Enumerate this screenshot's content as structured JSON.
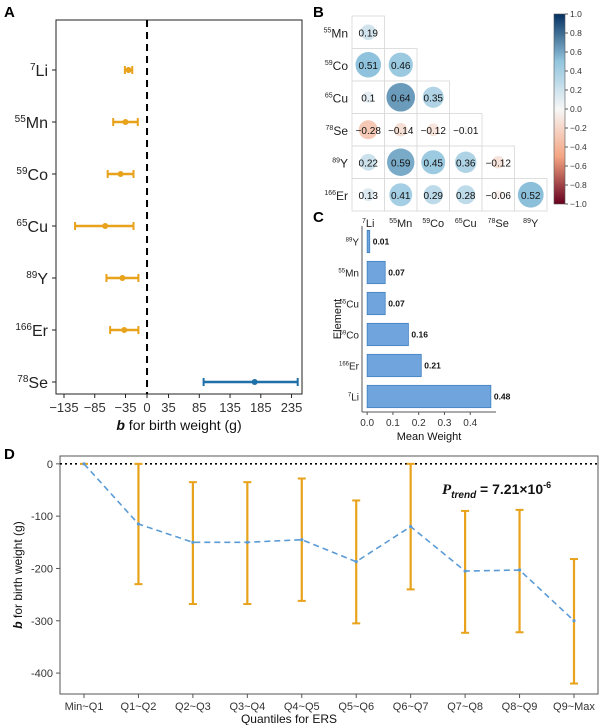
{
  "colors": {
    "orange": "#E8A21B",
    "blue_ci": "#1F6FA8",
    "bar": "#6FA5DC",
    "bar_edge": "#3F7FC0",
    "dash_line": "#5B9BD5"
  },
  "chart_data": [
    {
      "panel": "A",
      "type": "forest",
      "xlabel_b": "b",
      "xlabel_rest": " for birth weight (g)",
      "xticks": [
        -135,
        -85,
        -35,
        0,
        35,
        85,
        135,
        185,
        235
      ],
      "xlim": [
        -148,
        252
      ],
      "rows": [
        {
          "mass": "7",
          "symbol": "Li",
          "est": -30,
          "lo": -36,
          "hi": -24,
          "color": "orange"
        },
        {
          "mass": "55",
          "symbol": "Mn",
          "est": -35,
          "lo": -55,
          "hi": -15,
          "color": "orange"
        },
        {
          "mass": "59",
          "symbol": "Co",
          "est": -43,
          "lo": -64,
          "hi": -22,
          "color": "orange"
        },
        {
          "mass": "65",
          "symbol": "Cu",
          "est": -68,
          "lo": -117,
          "hi": -22,
          "color": "orange"
        },
        {
          "mass": "89",
          "symbol": "Y",
          "est": -40,
          "lo": -66,
          "hi": -14,
          "color": "orange"
        },
        {
          "mass": "166",
          "symbol": "Er",
          "est": -37,
          "lo": -60,
          "hi": -14,
          "color": "orange"
        },
        {
          "mass": "78",
          "symbol": "Se",
          "est": 175,
          "lo": 92,
          "hi": 245,
          "color": "blue_ci"
        }
      ]
    },
    {
      "panel": "B",
      "type": "heatmap",
      "elements": [
        {
          "mass": "7",
          "symbol": "Li"
        },
        {
          "mass": "55",
          "symbol": "Mn"
        },
        {
          "mass": "59",
          "symbol": "Co"
        },
        {
          "mass": "65",
          "symbol": "Cu"
        },
        {
          "mass": "78",
          "symbol": "Se"
        },
        {
          "mass": "89",
          "symbol": "Y"
        },
        {
          "mass": "166",
          "symbol": "Er"
        }
      ],
      "cells": [
        {
          "row": 0,
          "col": 0,
          "value": 0.19,
          "label": "0.19"
        },
        {
          "row": 1,
          "col": 0,
          "value": 0.51,
          "label": "0.51"
        },
        {
          "row": 1,
          "col": 1,
          "value": 0.46,
          "label": "0.46"
        },
        {
          "row": 2,
          "col": 0,
          "value": 0.1,
          "label": "0.1"
        },
        {
          "row": 2,
          "col": 1,
          "value": 0.64,
          "label": "0.64"
        },
        {
          "row": 2,
          "col": 2,
          "value": 0.35,
          "label": "0.35"
        },
        {
          "row": 3,
          "col": 0,
          "value": -0.28,
          "label": "−0.28"
        },
        {
          "row": 3,
          "col": 1,
          "value": -0.14,
          "label": "−0.14"
        },
        {
          "row": 3,
          "col": 2,
          "value": -0.12,
          "label": "−0.12"
        },
        {
          "row": 3,
          "col": 3,
          "value": -0.01,
          "label": "−0.01"
        },
        {
          "row": 4,
          "col": 0,
          "value": 0.22,
          "label": "0.22"
        },
        {
          "row": 4,
          "col": 1,
          "value": 0.59,
          "label": "0.59"
        },
        {
          "row": 4,
          "col": 2,
          "value": 0.45,
          "label": "0.45"
        },
        {
          "row": 4,
          "col": 3,
          "value": 0.36,
          "label": "0.36"
        },
        {
          "row": 4,
          "col": 4,
          "value": -0.12,
          "label": "−0.12"
        },
        {
          "row": 5,
          "col": 0,
          "value": 0.13,
          "label": "0.13"
        },
        {
          "row": 5,
          "col": 1,
          "value": 0.41,
          "label": "0.41"
        },
        {
          "row": 5,
          "col": 2,
          "value": 0.29,
          "label": "0.29"
        },
        {
          "row": 5,
          "col": 3,
          "value": 0.28,
          "label": "0.28"
        },
        {
          "row": 5,
          "col": 4,
          "value": -0.06,
          "label": "−0.06"
        },
        {
          "row": 5,
          "col": 5,
          "value": 0.52,
          "label": "0.52"
        }
      ],
      "colorbar": {
        "range": [
          -1.0,
          1.0
        ],
        "ticks": [
          "1.0",
          "0.8",
          "0.6",
          "0.4",
          "0.2",
          "0.0",
          "−0.2",
          "−0.4",
          "−0.6",
          "−0.8",
          "−1.0"
        ]
      }
    },
    {
      "panel": "C",
      "type": "bar",
      "orientation": "horizontal",
      "xlabel": "Mean Weight",
      "ylabel": "Element",
      "xlim": [
        -0.02,
        0.5
      ],
      "xticks": [
        0.0,
        0.1,
        0.2,
        0.3,
        0.4
      ],
      "xtick_labels": [
        "0.0",
        "0.1",
        "0.2",
        "0.3",
        "0.4"
      ],
      "bars": [
        {
          "mass": "89",
          "symbol": "Y",
          "value": 0.01,
          "label": "0.01"
        },
        {
          "mass": "55",
          "symbol": "Mn",
          "value": 0.07,
          "label": "0.07"
        },
        {
          "mass": "65",
          "symbol": "Cu",
          "value": 0.07,
          "label": "0.07"
        },
        {
          "mass": "59",
          "symbol": "Co",
          "value": 0.16,
          "label": "0.16"
        },
        {
          "mass": "166",
          "symbol": "Er",
          "value": 0.21,
          "label": "0.21"
        },
        {
          "mass": "7",
          "symbol": "Li",
          "value": 0.48,
          "label": "0.48"
        }
      ]
    },
    {
      "panel": "D",
      "type": "line",
      "xlabel": "Quantiles for ERS",
      "ylabel_b": "b",
      "ylabel_rest": " for birth weight (g)",
      "ylim": [
        -440,
        15
      ],
      "yticks": [
        0,
        -100,
        -200,
        -300,
        -400
      ],
      "ytick_labels": [
        "0",
        "-100",
        "-200",
        "-300",
        "-400"
      ],
      "annotation_p": "P",
      "annotation_sub": "trend",
      "annotation_eq": " = 7.21×10",
      "annotation_exp": "-6",
      "categories": [
        "Min~Q1",
        "Q1~Q2",
        "Q2~Q3",
        "Q3~Q4",
        "Q4~Q5",
        "Q5~Q6",
        "Q6~Q7",
        "Q7~Q8",
        "Q8~Q9",
        "Q9~Max"
      ],
      "values": [
        0,
        -115,
        -150,
        -150,
        -145,
        -187,
        -120,
        -205,
        -203,
        -300
      ],
      "lower": [
        0,
        -230,
        -268,
        -268,
        -262,
        -305,
        -240,
        -323,
        -322,
        -420
      ],
      "upper": [
        0,
        0,
        -35,
        -35,
        -28,
        -70,
        0,
        -90,
        -88,
        -182
      ]
    }
  ],
  "labels": {
    "panel_a": "A",
    "panel_b": "B",
    "panel_c": "C",
    "panel_d": "D"
  }
}
